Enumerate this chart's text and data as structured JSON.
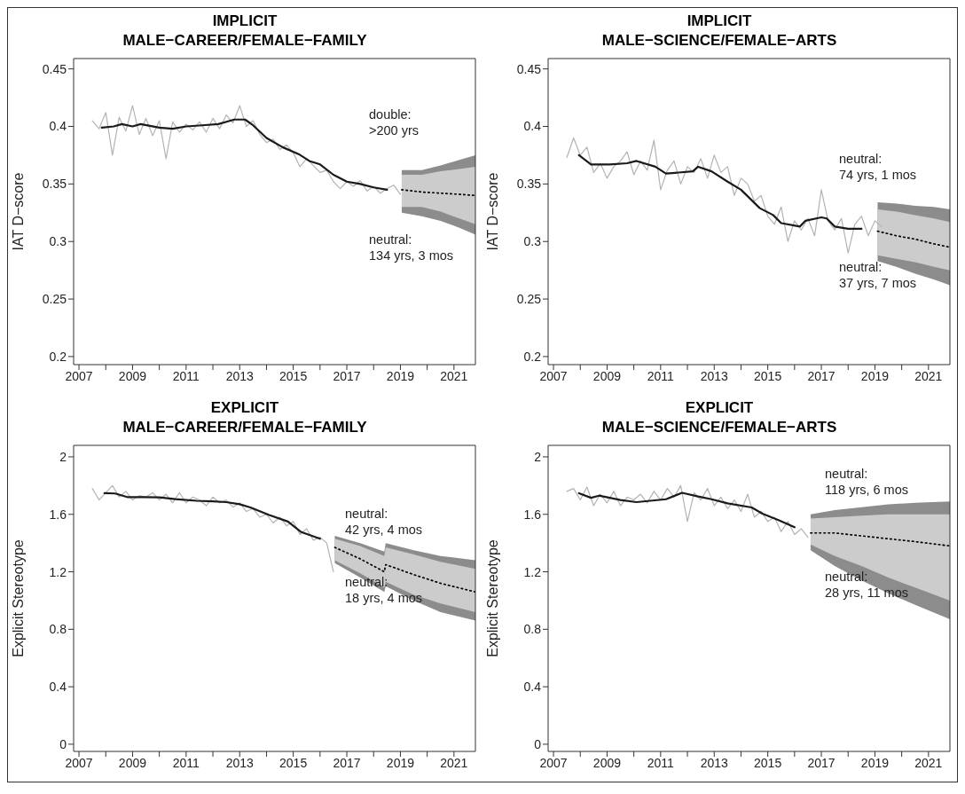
{
  "chart_data": [
    {
      "type": "line",
      "title": "IMPLICIT\nMALE−CAREER/FEMALE−FAMILY",
      "ylabel": "IAT D−score",
      "xlim": [
        2006.8,
        2021.8
      ],
      "ylim": [
        0.193,
        0.459
      ],
      "xticks": [
        2007,
        {
          "value": 2008,
          "label": null
        },
        2009,
        {
          "value": 2010,
          "label": null
        },
        2011,
        {
          "value": 2012,
          "label": null
        },
        2013,
        {
          "value": 2014,
          "label": null
        },
        2015,
        {
          "value": 2016,
          "label": null
        },
        2017,
        {
          "value": 2018,
          "label": null
        },
        2019,
        {
          "value": 2020,
          "label": null
        },
        2021
      ],
      "yticks": [
        0.2,
        0.25,
        0.3,
        0.35,
        0.4,
        0.45
      ],
      "series": [
        {
          "type": "line",
          "color": "#b3b3b3",
          "x": [
            2007.5,
            2007.75,
            2008,
            2008.25,
            2008.5,
            2008.75,
            2009,
            2009.25,
            2009.5,
            2009.75,
            2010,
            2010.25,
            2010.5,
            2010.75,
            2011,
            2011.25,
            2011.5,
            2011.75,
            2012,
            2012.25,
            2012.5,
            2012.75,
            2013,
            2013.25,
            2013.5,
            2013.75,
            2014,
            2014.25,
            2014.5,
            2014.75,
            2015,
            2015.25,
            2015.5,
            2015.75,
            2016,
            2016.25,
            2016.5,
            2016.75,
            2017,
            2017.25,
            2017.5,
            2017.75,
            2018,
            2018.25,
            2018.5,
            2018.75,
            2019
          ],
          "values": [
            0.405,
            0.398,
            0.412,
            0.375,
            0.408,
            0.396,
            0.418,
            0.393,
            0.407,
            0.392,
            0.405,
            0.372,
            0.404,
            0.395,
            0.402,
            0.397,
            0.404,
            0.395,
            0.407,
            0.398,
            0.41,
            0.403,
            0.418,
            0.4,
            0.405,
            0.393,
            0.386,
            0.389,
            0.38,
            0.384,
            0.377,
            0.365,
            0.372,
            0.366,
            0.36,
            0.362,
            0.352,
            0.346,
            0.352,
            0.348,
            0.353,
            0.344,
            0.348,
            0.342,
            0.346,
            0.349,
            0.341
          ]
        },
        {
          "type": "line",
          "color": "#1a1a1a",
          "x": [
            2007.85,
            2008.3,
            2008.6,
            2009,
            2009.3,
            2010,
            2010.5,
            2011,
            2011.6,
            2012.2,
            2012.8,
            2013.2,
            2013.5,
            2014,
            2014.6,
            2015.2,
            2015.6,
            2016,
            2016.5,
            2017,
            2017.5,
            2018,
            2018.5
          ],
          "values": [
            0.399,
            0.4,
            0.402,
            0.4,
            0.402,
            0.399,
            0.398,
            0.4,
            0.401,
            0.402,
            0.406,
            0.406,
            0.401,
            0.39,
            0.382,
            0.376,
            0.37,
            0.367,
            0.358,
            0.352,
            0.35,
            0.347,
            0.345
          ]
        },
        {
          "type": "line",
          "color": "#8c8c8c",
          "line_style": "dotted",
          "x": [
            2019.05,
            2019.8,
            2020.5,
            2021.2,
            2021.8
          ],
          "values": [
            0.345,
            0.343,
            0.342,
            0.341,
            0.34
          ],
          "lower": [
            0.325,
            0.322,
            0.318,
            0.312,
            0.306
          ],
          "upper": [
            0.362,
            0.362,
            0.366,
            0.371,
            0.375
          ]
        },
        {
          "type": "line",
          "color": "#000000",
          "line_style": "dotted",
          "x": [
            2019.05,
            2019.8,
            2020.5,
            2021.2,
            2021.8
          ],
          "values": [
            0.345,
            0.343,
            0.342,
            0.341,
            0.34
          ],
          "lower": [
            0.33,
            0.33,
            0.326,
            0.32,
            0.315
          ],
          "upper": [
            0.358,
            0.358,
            0.361,
            0.363,
            0.365
          ]
        }
      ],
      "annotations": [
        "double:\n>200 yrs",
        "neutral:\n134 yrs, 3 mos"
      ]
    },
    {
      "type": "line",
      "title": "IMPLICIT\nMALE−SCIENCE/FEMALE−ARTS",
      "ylabel": "IAT D−score",
      "xlim": [
        2006.8,
        2021.8
      ],
      "ylim": [
        0.193,
        0.459
      ],
      "xticks": [
        2007,
        {
          "value": 2008,
          "label": null
        },
        2009,
        {
          "value": 2010,
          "label": null
        },
        2011,
        {
          "value": 2012,
          "label": null
        },
        2013,
        {
          "value": 2014,
          "label": null
        },
        2015,
        {
          "value": 2016,
          "label": null
        },
        2017,
        {
          "value": 2018,
          "label": null
        },
        2019,
        {
          "value": 2020,
          "label": null
        },
        2021
      ],
      "yticks": [
        0.2,
        0.25,
        0.3,
        0.35,
        0.4,
        0.45
      ],
      "series": [
        {
          "type": "line",
          "color": "#b3b3b3",
          "x": [
            2007.5,
            2007.75,
            2008,
            2008.25,
            2008.5,
            2008.75,
            2009,
            2009.25,
            2009.5,
            2009.75,
            2010,
            2010.25,
            2010.5,
            2010.75,
            2011,
            2011.25,
            2011.5,
            2011.75,
            2012,
            2012.25,
            2012.5,
            2012.75,
            2013,
            2013.25,
            2013.5,
            2013.75,
            2014,
            2014.25,
            2014.5,
            2014.75,
            2015,
            2015.25,
            2015.5,
            2015.75,
            2016,
            2016.25,
            2016.5,
            2016.75,
            2017,
            2017.25,
            2017.5,
            2017.75,
            2018,
            2018.25,
            2018.5,
            2018.75,
            2019,
            2019.25
          ],
          "values": [
            0.373,
            0.39,
            0.375,
            0.382,
            0.36,
            0.368,
            0.355,
            0.365,
            0.37,
            0.378,
            0.358,
            0.37,
            0.362,
            0.388,
            0.345,
            0.362,
            0.37,
            0.35,
            0.365,
            0.36,
            0.372,
            0.355,
            0.375,
            0.36,
            0.365,
            0.34,
            0.355,
            0.35,
            0.335,
            0.34,
            0.322,
            0.315,
            0.33,
            0.3,
            0.318,
            0.31,
            0.32,
            0.305,
            0.345,
            0.318,
            0.31,
            0.32,
            0.29,
            0.315,
            0.322,
            0.305,
            0.318,
            0.313
          ]
        },
        {
          "type": "line",
          "color": "#1a1a1a",
          "x": [
            2007.95,
            2008.4,
            2009.1,
            2009.75,
            2010.1,
            2010.8,
            2011.2,
            2012.2,
            2012.4,
            2012.9,
            2013.5,
            2014,
            2014.7,
            2015.2,
            2015.5,
            2016.2,
            2016.4,
            2017,
            2017.2,
            2017.5,
            2018,
            2018.5
          ],
          "values": [
            0.375,
            0.367,
            0.367,
            0.368,
            0.37,
            0.365,
            0.359,
            0.361,
            0.365,
            0.361,
            0.352,
            0.345,
            0.329,
            0.323,
            0.316,
            0.313,
            0.318,
            0.321,
            0.32,
            0.313,
            0.311,
            0.311
          ]
        },
        {
          "type": "line",
          "color": "#8c8c8c",
          "line_style": "dotted",
          "x": [
            2019.1,
            2019.8,
            2020.5,
            2021.2,
            2021.8
          ],
          "values": [
            0.309,
            0.305,
            0.302,
            0.298,
            0.295
          ],
          "lower": [
            0.283,
            0.278,
            0.272,
            0.267,
            0.262
          ],
          "upper": [
            0.334,
            0.333,
            0.331,
            0.33,
            0.328
          ]
        },
        {
          "type": "line",
          "color": "#000000",
          "line_style": "dotted",
          "x": [
            2019.1,
            2019.8,
            2020.5,
            2021.2,
            2021.8
          ],
          "values": [
            0.309,
            0.305,
            0.302,
            0.298,
            0.295
          ],
          "lower": [
            0.288,
            0.285,
            0.282,
            0.278,
            0.275
          ],
          "upper": [
            0.328,
            0.326,
            0.323,
            0.32,
            0.317
          ]
        }
      ],
      "annotations": [
        "neutral:\n74 yrs, 1 mos",
        "neutral:\n37 yrs, 7 mos"
      ]
    },
    {
      "type": "line",
      "title": "EXPLICIT\nMALE−CAREER/FEMALE−FAMILY",
      "ylabel": "Explicit Stereotype",
      "xlim": [
        2006.8,
        2021.8
      ],
      "ylim": [
        -0.05,
        2.08
      ],
      "xticks": [
        2007,
        {
          "value": 2008,
          "label": null
        },
        2009,
        {
          "value": 2010,
          "label": null
        },
        2011,
        {
          "value": 2012,
          "label": null
        },
        2013,
        {
          "value": 2014,
          "label": null
        },
        2015,
        {
          "value": 2016,
          "label": null
        },
        2017,
        {
          "value": 2018,
          "label": null
        },
        2019,
        {
          "value": 2020,
          "label": null
        },
        2021
      ],
      "yticks": [
        0,
        0.4,
        0.8,
        1.2,
        1.6,
        2
      ],
      "series": [
        {
          "type": "line",
          "color": "#b3b3b3",
          "x": [
            2007.5,
            2007.75,
            2008,
            2008.25,
            2008.5,
            2008.75,
            2009,
            2009.25,
            2009.5,
            2009.75,
            2010,
            2010.25,
            2010.5,
            2010.75,
            2011,
            2011.25,
            2011.5,
            2011.75,
            2012,
            2012.25,
            2012.5,
            2012.75,
            2013,
            2013.25,
            2013.5,
            2013.75,
            2014,
            2014.25,
            2014.5,
            2014.75,
            2015,
            2015.25,
            2015.5,
            2015.75,
            2016,
            2016.25,
            2016.5
          ],
          "values": [
            1.78,
            1.7,
            1.75,
            1.8,
            1.72,
            1.76,
            1.7,
            1.73,
            1.72,
            1.75,
            1.7,
            1.74,
            1.68,
            1.75,
            1.68,
            1.72,
            1.7,
            1.66,
            1.72,
            1.68,
            1.7,
            1.65,
            1.68,
            1.62,
            1.64,
            1.58,
            1.6,
            1.54,
            1.58,
            1.52,
            1.55,
            1.46,
            1.5,
            1.42,
            1.44,
            1.4,
            1.2
          ]
        },
        {
          "type": "line",
          "color": "#1a1a1a",
          "x": [
            2007.95,
            2008.35,
            2008.8,
            2009.4,
            2010,
            2010.6,
            2011.4,
            2012,
            2012.5,
            2013,
            2013.4,
            2014.1,
            2014.8,
            2015.3,
            2016
          ],
          "values": [
            1.747,
            1.745,
            1.72,
            1.72,
            1.718,
            1.706,
            1.694,
            1.69,
            1.685,
            1.67,
            1.648,
            1.595,
            1.55,
            1.476,
            1.43
          ]
        },
        {
          "type": "line",
          "color": "#8c8c8c",
          "line_style": "dotted",
          "x": [
            2016.55,
            2017.5,
            2018.4,
            2018.45,
            2019.5,
            2020.5,
            2021.8
          ],
          "values": [
            1.37,
            1.29,
            1.2,
            1.25,
            1.18,
            1.12,
            1.06
          ],
          "lower": [
            1.26,
            1.16,
            1.06,
            1.1,
            1,
            0.92,
            0.86
          ],
          "upper": [
            1.45,
            1.4,
            1.34,
            1.4,
            1.35,
            1.31,
            1.28
          ]
        },
        {
          "type": "line",
          "color": "#000000",
          "line_style": "dotted",
          "x": [
            2016.55,
            2017.5,
            2018.4,
            2018.45,
            2019.5,
            2020.5,
            2021.8
          ],
          "values": [
            1.37,
            1.29,
            1.2,
            1.25,
            1.18,
            1.12,
            1.06
          ],
          "lower": [
            1.28,
            1.19,
            1.09,
            1.13,
            1.04,
            0.98,
            0.92
          ],
          "upper": [
            1.43,
            1.38,
            1.31,
            1.37,
            1.32,
            1.27,
            1.22
          ]
        }
      ],
      "annotations": [
        "neutral:\n42 yrs, 4 mos",
        "neutral:\n18 yrs, 4 mos"
      ]
    },
    {
      "type": "line",
      "title": "EXPLICIT\nMALE−SCIENCE/FEMALE−ARTS",
      "ylabel": "Explicit Stereotype",
      "xlim": [
        2006.8,
        2021.8
      ],
      "ylim": [
        -0.05,
        2.08
      ],
      "xticks": [
        2007,
        {
          "value": 2008,
          "label": null
        },
        2009,
        {
          "value": 2010,
          "label": null
        },
        2011,
        {
          "value": 2012,
          "label": null
        },
        2013,
        {
          "value": 2014,
          "label": null
        },
        2015,
        {
          "value": 2016,
          "label": null
        },
        2017,
        {
          "value": 2018,
          "label": null
        },
        2019,
        {
          "value": 2020,
          "label": null
        },
        2021
      ],
      "yticks": [
        0,
        0.4,
        0.8,
        1.2,
        1.6,
        2
      ],
      "series": [
        {
          "type": "line",
          "color": "#b3b3b3",
          "x": [
            2007.5,
            2007.75,
            2008,
            2008.25,
            2008.5,
            2008.75,
            2009,
            2009.25,
            2009.5,
            2009.75,
            2010,
            2010.25,
            2010.5,
            2010.75,
            2011,
            2011.25,
            2011.5,
            2011.75,
            2012,
            2012.25,
            2012.5,
            2012.75,
            2013,
            2013.25,
            2013.5,
            2013.75,
            2014,
            2014.25,
            2014.5,
            2014.75,
            2015,
            2015.25,
            2015.5,
            2015.75,
            2016,
            2016.25,
            2016.5
          ],
          "values": [
            1.76,
            1.78,
            1.7,
            1.79,
            1.66,
            1.74,
            1.68,
            1.76,
            1.66,
            1.72,
            1.7,
            1.74,
            1.68,
            1.76,
            1.7,
            1.78,
            1.72,
            1.8,
            1.55,
            1.75,
            1.7,
            1.78,
            1.66,
            1.72,
            1.64,
            1.7,
            1.62,
            1.74,
            1.58,
            1.62,
            1.55,
            1.58,
            1.48,
            1.55,
            1.46,
            1.5,
            1.44
          ]
        },
        {
          "type": "line",
          "color": "#1a1a1a",
          "x": [
            2007.95,
            2008.4,
            2008.7,
            2009.5,
            2010.1,
            2011.2,
            2011.8,
            2012.4,
            2012.9,
            2013.5,
            2014.4,
            2014.8,
            2015.4,
            2016
          ],
          "values": [
            1.747,
            1.715,
            1.73,
            1.7,
            1.685,
            1.705,
            1.75,
            1.724,
            1.705,
            1.676,
            1.648,
            1.605,
            1.56,
            1.51
          ]
        },
        {
          "type": "line",
          "color": "#8c8c8c",
          "line_style": "dotted",
          "x": [
            2016.6,
            2017.5,
            2018.5,
            2019.5,
            2020.5,
            2021.8
          ],
          "values": [
            1.47,
            1.47,
            1.45,
            1.43,
            1.41,
            1.38
          ],
          "lower": [
            1.35,
            1.24,
            1.14,
            1.05,
            0.97,
            0.87
          ],
          "upper": [
            1.6,
            1.63,
            1.65,
            1.67,
            1.68,
            1.69
          ]
        },
        {
          "type": "line",
          "color": "#000000",
          "line_style": "dotted",
          "x": [
            2016.6,
            2017.5,
            2018.5,
            2019.5,
            2020.5,
            2021.8
          ],
          "values": [
            1.47,
            1.47,
            1.45,
            1.43,
            1.41,
            1.38
          ],
          "lower": [
            1.39,
            1.31,
            1.24,
            1.16,
            1.09,
            1
          ],
          "upper": [
            1.57,
            1.58,
            1.59,
            1.6,
            1.6,
            1.6
          ]
        }
      ],
      "annotations": [
        "neutral:\n118 yrs, 6 mos",
        "neutral:\n28 yrs, 11 mos"
      ]
    }
  ]
}
